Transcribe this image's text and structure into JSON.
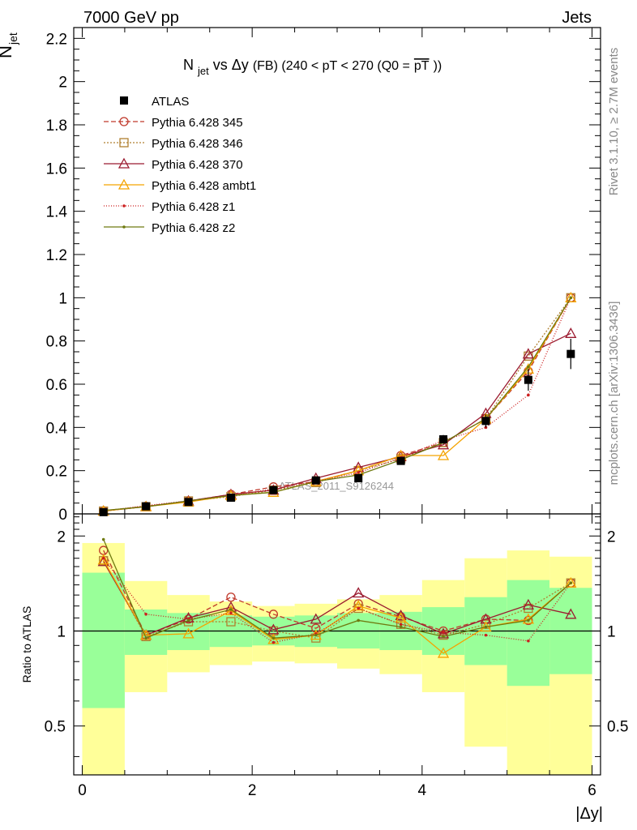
{
  "header": {
    "left": "7000 GeV pp",
    "right": "Jets"
  },
  "side": {
    "rivet": "Rivet 3.1.10, ≥ 2.7M events",
    "mcplots": "mcplots.cern.ch [arXiv:1306.3436]"
  },
  "chart_data": [
    {
      "type": "line",
      "title": "N_jet vs Δy (FB) (240 < pT < 270 (Q0 = pT‾))",
      "title_parts": {
        "n": "N",
        "sub": "jet",
        "vs": " vs ",
        "dy": "Δy",
        "fb": " (FB) ",
        "range": "(240 < pT < 270 (Q0 =",
        "pt": "pT",
        "close": "))"
      },
      "ylabel": "N_jet (overlined)",
      "ylabel_parts": {
        "n": "N",
        "sub": "jet"
      },
      "watermark": "ATLAS_2011_S9126244",
      "xlim": [
        -0.1,
        6.1
      ],
      "ylim": [
        0,
        2.25
      ],
      "y_ticks": [
        0,
        0.2,
        0.4,
        0.6,
        0.8,
        1,
        1.2,
        1.4,
        1.6,
        1.8,
        2,
        2.2
      ],
      "y_tick_labels": [
        "0",
        "0.2",
        "0.4",
        "0.6",
        "0.8",
        "1",
        "1.2",
        "1.4",
        "1.6",
        "1.8",
        "2",
        "2.2"
      ],
      "x": [
        0.25,
        0.75,
        1.25,
        1.75,
        2.25,
        2.75,
        3.25,
        3.75,
        4.25,
        4.75,
        5.25,
        5.75
      ],
      "data": {
        "name": "ATLAS",
        "values": [
          0.008,
          0.035,
          0.055,
          0.075,
          0.11,
          0.155,
          0.165,
          0.245,
          0.345,
          0.43,
          0.62,
          0.74
        ],
        "errors": [
          0.003,
          0.004,
          0.005,
          0.006,
          0.008,
          0.01,
          0.012,
          0.015,
          0.02,
          0.03,
          0.05,
          0.07
        ]
      },
      "series": [
        {
          "name": "Pythia 6.428 345",
          "color": "#c0392b",
          "marker": "circle",
          "dash": "6,3",
          "values": [
            0.014,
            0.035,
            0.06,
            0.09,
            0.125,
            0.15,
            0.2,
            0.27,
            0.33,
            0.44,
            0.66,
            1.0
          ]
        },
        {
          "name": "Pythia 6.428 346",
          "color": "#b08030",
          "marker": "square",
          "dash": "2,2",
          "values": [
            0.013,
            0.033,
            0.06,
            0.08,
            0.11,
            0.145,
            0.2,
            0.255,
            0.33,
            0.44,
            0.73,
            1.0
          ]
        },
        {
          "name": "Pythia 6.428 370",
          "color": "#9b1b30",
          "marker": "triangle",
          "dash": "",
          "values": [
            0.013,
            0.034,
            0.06,
            0.09,
            0.11,
            0.165,
            0.215,
            0.265,
            0.32,
            0.465,
            0.74,
            0.835
          ]
        },
        {
          "name": "Pythia 6.428 ambt1",
          "color": "#f4a300",
          "marker": "triangle",
          "dash": "",
          "values": [
            0.013,
            0.034,
            0.055,
            0.085,
            0.1,
            0.15,
            0.2,
            0.27,
            0.27,
            0.44,
            0.67,
            1.0
          ]
        },
        {
          "name": "Pythia 6.428 z1",
          "color": "#cc1f1f",
          "marker": "dot",
          "dash": "1,2",
          "values": [
            0.014,
            0.038,
            0.06,
            0.085,
            0.115,
            0.15,
            0.19,
            0.26,
            0.34,
            0.4,
            0.55,
            1.0
          ]
        },
        {
          "name": "Pythia 6.428 z2",
          "color": "#6f7a10",
          "marker": "dot",
          "dash": "",
          "values": [
            0.016,
            0.033,
            0.06,
            0.085,
            0.1,
            0.15,
            0.18,
            0.25,
            0.33,
            0.44,
            0.68,
            1.0
          ]
        }
      ]
    },
    {
      "type": "line",
      "ylabel": "Ratio to ATLAS",
      "xlabel": "|Δy|",
      "xlim": [
        -0.1,
        6.1
      ],
      "ylim": [
        0.35,
        2.35
      ],
      "x_ticks": [
        0,
        2,
        4,
        6
      ],
      "x_tick_labels": [
        "0",
        "2",
        "4",
        "6"
      ],
      "y_ticks": [
        0.5,
        1,
        2
      ],
      "y_tick_labels": [
        "0.5",
        "1",
        "2"
      ],
      "bin_edges": [
        0,
        0.5,
        1,
        1.5,
        2,
        2.5,
        3,
        3.5,
        4,
        4.5,
        5,
        5.5,
        6
      ],
      "band_inner": [
        [
          0.57,
          1.53
        ],
        [
          0.84,
          1.17
        ],
        [
          0.87,
          1.14
        ],
        [
          0.89,
          1.12
        ],
        [
          0.9,
          1.11
        ],
        [
          0.89,
          1.12
        ],
        [
          0.88,
          1.14
        ],
        [
          0.87,
          1.15
        ],
        [
          0.84,
          1.19
        ],
        [
          0.78,
          1.28
        ],
        [
          0.67,
          1.45
        ],
        [
          0.73,
          1.37
        ]
      ],
      "band_outer": [
        [
          0.35,
          1.9
        ],
        [
          0.64,
          1.44
        ],
        [
          0.74,
          1.3
        ],
        [
          0.78,
          1.24
        ],
        [
          0.8,
          1.2
        ],
        [
          0.79,
          1.22
        ],
        [
          0.76,
          1.26
        ],
        [
          0.73,
          1.3
        ],
        [
          0.64,
          1.45
        ],
        [
          0.43,
          1.7
        ],
        [
          0.35,
          1.8
        ],
        [
          0.35,
          1.72
        ]
      ],
      "reference": 1,
      "series": [
        {
          "name": "Pythia 6.428 345",
          "values": [
            1.8,
            0.97,
            1.09,
            1.28,
            1.13,
            1.02,
            1.22,
            1.11,
            1.0,
            1.09,
            1.08,
            1.42
          ]
        },
        {
          "name": "Pythia 6.428 346",
          "values": [
            1.67,
            0.96,
            1.07,
            1.07,
            1.0,
            0.95,
            1.18,
            1.05,
            0.97,
            1.05,
            1.18,
            1.42
          ]
        },
        {
          "name": "Pythia 6.428 370",
          "values": [
            1.66,
            0.97,
            1.1,
            1.19,
            1.01,
            1.09,
            1.32,
            1.12,
            0.98,
            1.09,
            1.21,
            1.13
          ]
        },
        {
          "name": "Pythia 6.428 ambt1",
          "values": [
            1.68,
            0.97,
            0.98,
            1.16,
            0.94,
            0.97,
            1.2,
            1.1,
            0.85,
            1.03,
            1.09,
            1.42
          ]
        },
        {
          "name": "Pythia 6.428 z1",
          "values": [
            1.7,
            1.13,
            1.09,
            1.14,
            0.92,
            0.98,
            1.18,
            1.05,
            0.99,
            0.97,
            0.93,
            1.42
          ]
        },
        {
          "name": "Pythia 6.428 z2",
          "values": [
            1.95,
            0.95,
            1.08,
            1.17,
            0.95,
            0.97,
            1.08,
            1.03,
            0.96,
            1.03,
            1.08,
            1.42
          ]
        }
      ]
    }
  ]
}
